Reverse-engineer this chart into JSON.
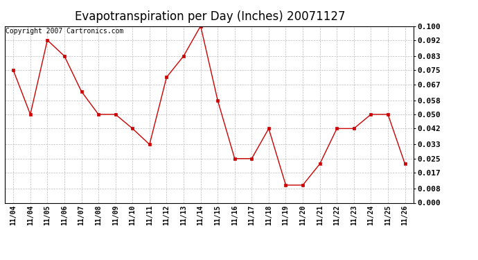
{
  "title": "Evapotranspiration per Day (Inches) 20071127",
  "copyright": "Copyright 2007 Cartronics.com",
  "x_labels": [
    "11/04",
    "11/04",
    "11/05",
    "11/06",
    "11/07",
    "11/08",
    "11/09",
    "11/10",
    "11/11",
    "11/12",
    "11/13",
    "11/14",
    "11/15",
    "11/16",
    "11/17",
    "11/18",
    "11/19",
    "11/20",
    "11/21",
    "11/22",
    "11/23",
    "11/24",
    "11/25",
    "11/26"
  ],
  "y_values": [
    0.075,
    0.05,
    0.092,
    0.083,
    0.063,
    0.05,
    0.05,
    0.042,
    0.033,
    0.071,
    0.083,
    0.1,
    0.058,
    0.025,
    0.025,
    0.042,
    0.01,
    0.01,
    0.022,
    0.042,
    0.042,
    0.05,
    0.05,
    0.022
  ],
  "line_color": "#cc0000",
  "marker_color": "#cc0000",
  "bg_color": "#ffffff",
  "plot_bg_color": "#ffffff",
  "grid_color": "#bbbbbb",
  "ylim": [
    0.0,
    0.1
  ],
  "yticks": [
    0.0,
    0.008,
    0.017,
    0.025,
    0.033,
    0.042,
    0.05,
    0.058,
    0.067,
    0.075,
    0.083,
    0.092,
    0.1
  ],
  "title_fontsize": 12,
  "copyright_fontsize": 7,
  "tick_fontsize": 8,
  "xtick_fontsize": 7
}
